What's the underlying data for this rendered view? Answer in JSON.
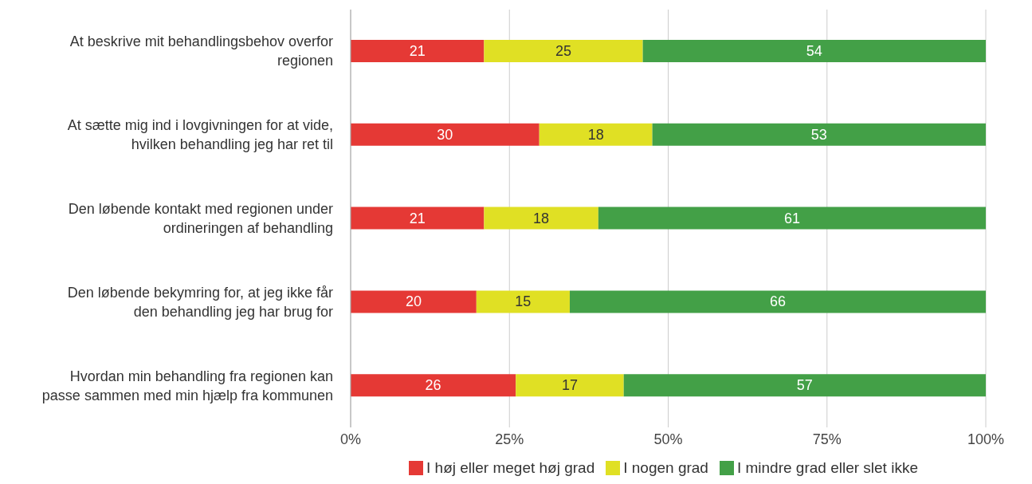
{
  "chart_data": {
    "type": "bar",
    "orientation": "horizontal",
    "stacked": true,
    "categories": [
      "At beskrive mit behandlingsbehov overfor regionen",
      "At sætte mig ind i lovgivningen for at vide, hvilken behandling jeg har ret til",
      "Den løbende kontakt med regionen under ordineringen af behandling",
      "Den løbende bekymring for, at jeg ikke får den behandling jeg har brug for",
      "Hvordan min behandling fra regionen kan passe sammen med min hjælp fra kommunen"
    ],
    "series": [
      {
        "name": "I høj eller meget høj grad",
        "color": "#e53935",
        "values": [
          21,
          29.7,
          21,
          19.8,
          26
        ],
        "value_labels": [
          "21",
          "30",
          "21",
          "20",
          "26"
        ]
      },
      {
        "name": "I nogen grad",
        "color": "#e0e024",
        "values": [
          25,
          17.8,
          18,
          14.7,
          17
        ],
        "value_labels": [
          "25",
          "18",
          "18",
          "15",
          "17"
        ]
      },
      {
        "name": "I mindre grad eller slet ikke",
        "color": "#43a047",
        "values": [
          54,
          52.5,
          61,
          65.5,
          57
        ],
        "value_labels": [
          "54",
          "53",
          "61",
          "66",
          "57"
        ]
      }
    ],
    "xlim": [
      0,
      100
    ],
    "xticks": [
      {
        "value": 0,
        "label": "0%"
      },
      {
        "value": 25,
        "label": "25%"
      },
      {
        "value": 50,
        "label": "50%"
      },
      {
        "value": 75,
        "label": "75%"
      },
      {
        "value": 100,
        "label": "100%"
      }
    ],
    "grid": "x",
    "legend": "bottom"
  }
}
